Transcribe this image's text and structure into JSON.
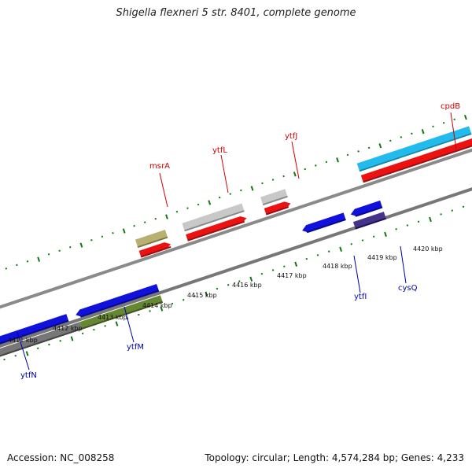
{
  "title": "Shigella flexneri 5 str. 8401, complete genome",
  "accession": "Accession: NC_008258",
  "summary": "Topology: circular; Length: 4,574,284 bp; Genes: 4,233",
  "colors": {
    "forward_gene": "#ee1111",
    "reverse_gene": "#1111dd",
    "backbone": "#888888",
    "tick": "#117711",
    "label_forward": "#cc0000",
    "label_reverse": "#0000aa"
  },
  "kbp_labels": [
    "4411 kbp",
    "4412 kbp",
    "4413 kbp",
    "4414 kbp",
    "4415 kbp",
    "4416 kbp",
    "4417 kbp",
    "4418 kbp",
    "4419 kbp",
    "4420 kbp"
  ],
  "gene_labels_forward": [
    "msrA",
    "ytfL",
    "ytfJ",
    "cpdB"
  ],
  "gene_labels_reverse": [
    "ytfN",
    "ytfM",
    "ytfI",
    "cysQ"
  ]
}
